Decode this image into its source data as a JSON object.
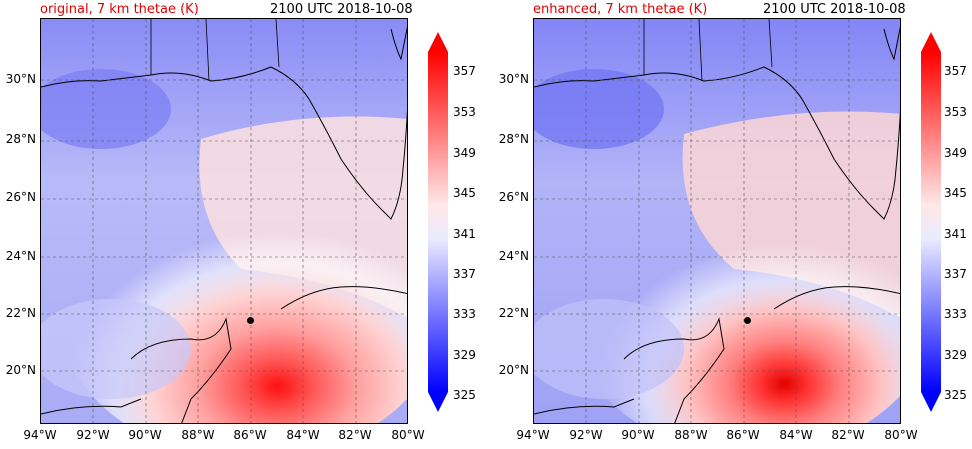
{
  "panels": [
    {
      "title_left": "original, 7 km thetae (K)",
      "title_right": "2100 UTC 2018-10-08",
      "storm_center": {
        "lon": -86.0,
        "lat": 21.8
      }
    },
    {
      "title_left": "enhanced, 7 km thetae (K)",
      "title_right": "2100 UTC 2018-10-08",
      "storm_center": {
        "lon": -85.8,
        "lat": 21.8
      }
    }
  ],
  "axes": {
    "lat_labels": [
      "30°N",
      "28°N",
      "26°N",
      "24°N",
      "22°N",
      "20°N"
    ],
    "lon_labels": [
      "94°W",
      "92°W",
      "90°W",
      "88°W",
      "86°W",
      "84°W",
      "82°W",
      "80°W"
    ]
  },
  "colorbar": {
    "labels": [
      "357",
      "353",
      "349",
      "345",
      "341",
      "337",
      "333",
      "329",
      "325"
    ],
    "min": 325,
    "max": 359,
    "step": 2
  },
  "colors": {
    "cold": "#0000ff",
    "neutral": "#ffffff",
    "warm": "#ff0000",
    "title_accent": "#e00000"
  }
}
